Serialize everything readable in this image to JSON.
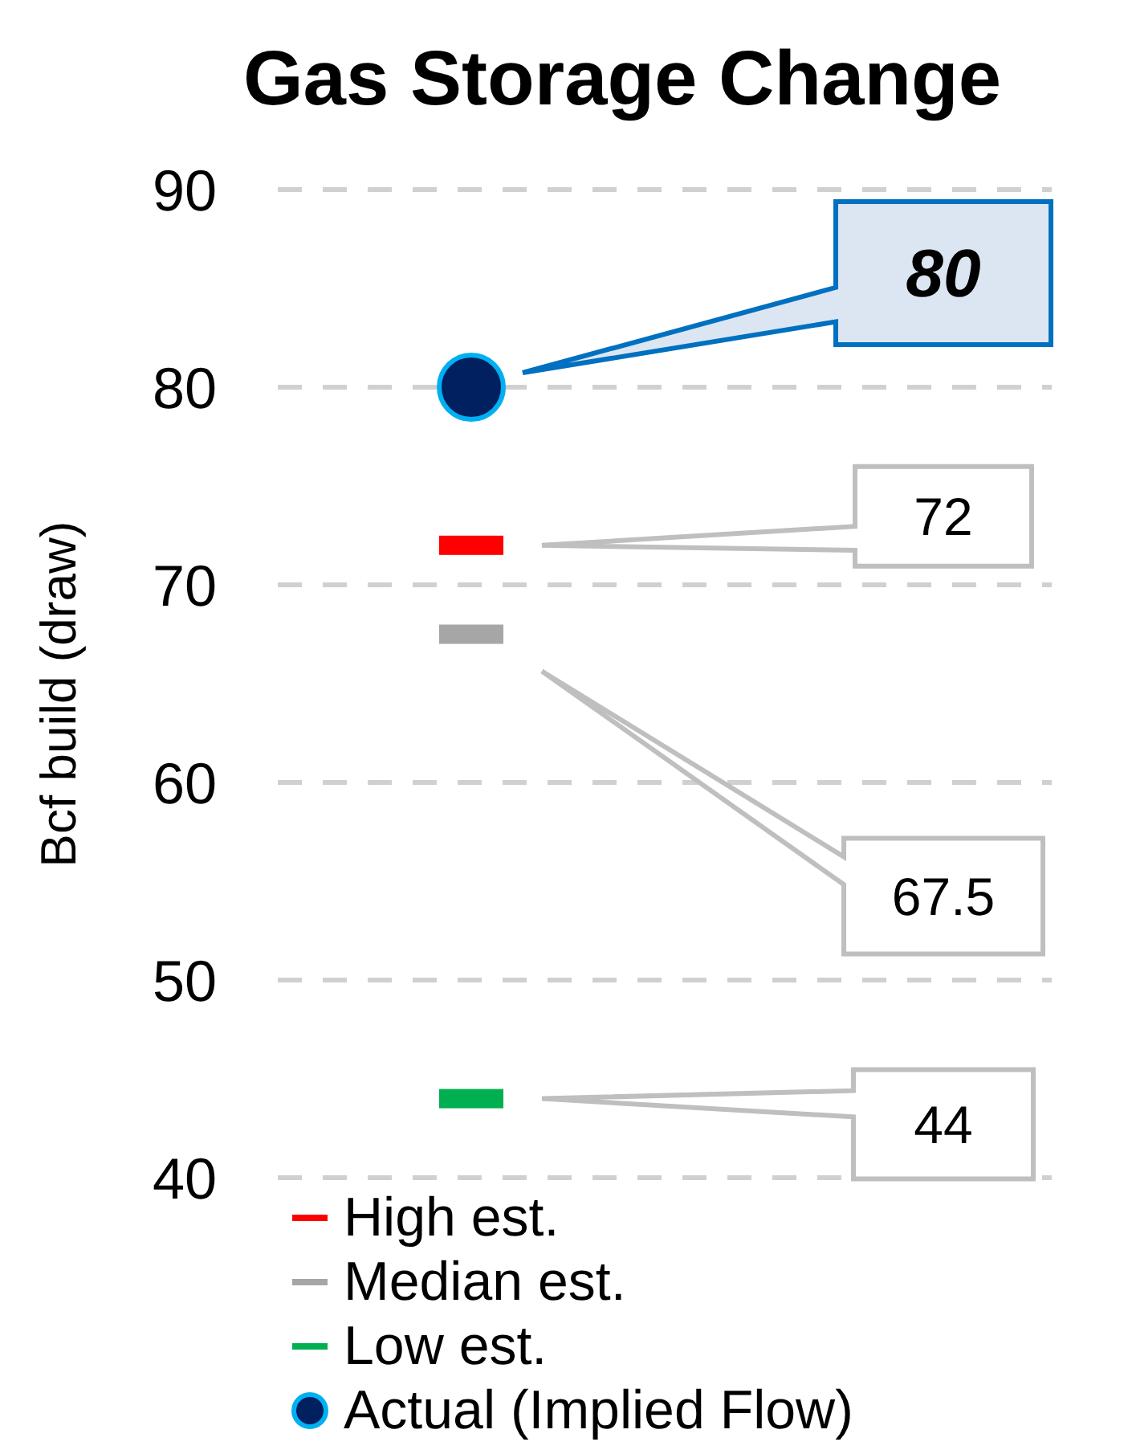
{
  "chart_data": {
    "type": "scatter",
    "title": "Gas Storage Change",
    "ylabel": "Bcf build (draw)",
    "categories": [
      null,
      null
    ],
    "series": [
      {
        "name": "High est.",
        "color": "#ff0000",
        "values": [
          72,
          null
        ],
        "marker": "square"
      },
      {
        "name": "Median est.",
        "color": "#a6a6a6",
        "values": [
          67.5,
          null
        ],
        "marker": "square"
      },
      {
        "name": "Low est.",
        "color": "#00b050",
        "values": [
          44,
          null
        ],
        "marker": "square"
      },
      {
        "name": "Actual (Implied Flow)",
        "color": "#002060",
        "values": [
          80,
          null
        ],
        "marker": "circle"
      }
    ],
    "annotations": [
      "72",
      "67.5",
      "44",
      "80"
    ],
    "ylim": [
      40,
      90
    ],
    "yticks": [
      40,
      50,
      60,
      70,
      80,
      90
    ],
    "grid": "y",
    "legend": "bottom left",
    "tick_labels": "y"
  }
}
